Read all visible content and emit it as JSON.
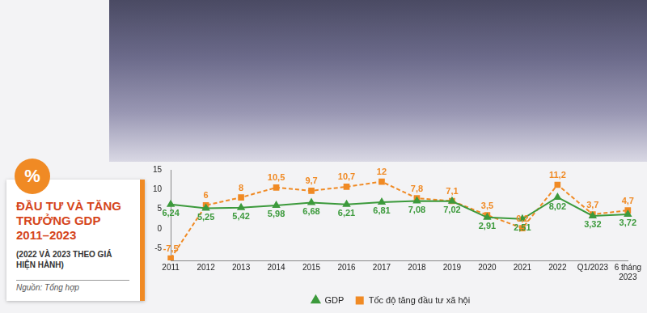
{
  "chart_data": {
    "type": "line",
    "title": "ĐẦU TƯ VÀ TĂNG TRƯỞNG GDP 2011–2023",
    "subtitle": "(2022 VÀ 2023 THEO GIÁ HIỆN HÀNH)",
    "annotations": [
      "%",
      "Nguồn: Tổng hợp"
    ],
    "categories": [
      "2011",
      "2012",
      "2013",
      "2014",
      "2015",
      "2016",
      "2017",
      "2018",
      "2019",
      "2020",
      "2021",
      "2022",
      "Q1/2023",
      "6 tháng 2023"
    ],
    "series": [
      {
        "name": "GDP",
        "color": "#3c9a3c",
        "marker": "triangle",
        "line_style": "solid",
        "values": [
          6.24,
          5.25,
          5.42,
          5.98,
          6.68,
          6.21,
          6.81,
          7.08,
          7.02,
          2.91,
          2.51,
          8.02,
          3.32,
          3.72
        ],
        "value_labels": [
          "6,24",
          "5,25",
          "5,42",
          "5,98",
          "6,68",
          "6,21",
          "6,81",
          "7,08",
          "7,02",
          "2,91",
          "2,51",
          "8,02",
          "3,32",
          "3,72"
        ]
      },
      {
        "name": "Tốc độ tăng đầu tư xã hội",
        "color": "#f08a24",
        "marker": "square",
        "line_style": "dashed",
        "values": [
          -7.5,
          6,
          8,
          10.5,
          9.7,
          10.7,
          12,
          7.8,
          7.1,
          3.5,
          0.2,
          11.2,
          3.7,
          4.7
        ],
        "value_labels": [
          "-7,5",
          "6",
          "8",
          "10,5",
          "9,7",
          "10,7",
          "12",
          "7,8",
          "7,1",
          "3,5",
          "0,2",
          "11,2",
          "3,7",
          "4,7"
        ]
      }
    ],
    "ylim": [
      -8,
      15
    ],
    "yticks": [
      -5,
      0,
      5,
      10,
      15
    ],
    "grid": false,
    "legend": "bottom",
    "data_labels": true
  }
}
